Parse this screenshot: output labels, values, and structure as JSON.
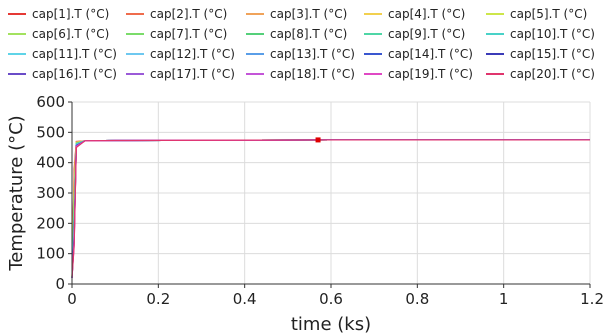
{
  "colors": {
    "series": [
      "#e53935",
      "#ef6c4c",
      "#f0a35a",
      "#f2d04f",
      "#cde64a",
      "#a3e25f",
      "#7bdc6a",
      "#55d07a",
      "#4fd6a6",
      "#49d2c8",
      "#5fd4e8",
      "#6ec8f0",
      "#5a9ee8",
      "#3a57d0",
      "#3b3bb8",
      "#6a4cc8",
      "#9b5ad8",
      "#c455d8",
      "#e048c4",
      "#e0356d"
    ],
    "grid": "#dcdcdc",
    "axis": "#333333"
  },
  "chart_data": {
    "type": "line",
    "xlabel": "time (ks)",
    "ylabel": "Temperature (°C)",
    "xlim": [
      0,
      1.2
    ],
    "ylim": [
      0,
      600
    ],
    "x_ticks": [
      "0",
      "0.2",
      "0.4",
      "0.6",
      "0.8",
      "1",
      "1.2"
    ],
    "y_ticks": [
      "0",
      "100",
      "200",
      "300",
      "400",
      "500",
      "600"
    ],
    "legend_position": "top",
    "grid": true,
    "marker": {
      "x": 0.57,
      "y": 475
    },
    "series": [
      {
        "name": "cap[1].T (°C)",
        "x": [
          0,
          0.005,
          0.01,
          0.03,
          0.1,
          0.3,
          0.6,
          1.2
        ],
        "y": [
          20,
          380,
          470,
          472,
          473,
          474,
          475,
          475
        ]
      },
      {
        "name": "cap[2].T (°C)",
        "x": [
          0,
          0.005,
          0.01,
          0.03,
          0.1,
          0.3,
          0.6,
          1.2
        ],
        "y": [
          20,
          360,
          469,
          472,
          473,
          474,
          475,
          475
        ]
      },
      {
        "name": "cap[3].T (°C)",
        "x": [
          0,
          0.005,
          0.01,
          0.03,
          0.1,
          0.3,
          0.6,
          1.2
        ],
        "y": [
          20,
          340,
          468,
          472,
          473,
          474,
          475,
          475
        ]
      },
      {
        "name": "cap[4].T (°C)",
        "x": [
          0,
          0.005,
          0.01,
          0.03,
          0.1,
          0.3,
          0.6,
          1.2
        ],
        "y": [
          20,
          320,
          467,
          472,
          473,
          474,
          475,
          475
        ]
      },
      {
        "name": "cap[5].T (°C)",
        "x": [
          0,
          0.005,
          0.01,
          0.03,
          0.1,
          0.3,
          0.6,
          1.2
        ],
        "y": [
          20,
          300,
          466,
          472,
          473,
          474,
          475,
          475
        ]
      },
      {
        "name": "cap[6].T (°C)",
        "x": [
          0,
          0.005,
          0.01,
          0.03,
          0.1,
          0.3,
          0.6,
          1.2
        ],
        "y": [
          20,
          280,
          465,
          472,
          473,
          474,
          475,
          475
        ]
      },
      {
        "name": "cap[7].T (°C)",
        "x": [
          0,
          0.005,
          0.01,
          0.03,
          0.1,
          0.3,
          0.6,
          1.2
        ],
        "y": [
          20,
          260,
          464,
          472,
          473,
          474,
          475,
          475
        ]
      },
      {
        "name": "cap[8].T (°C)",
        "x": [
          0,
          0.005,
          0.01,
          0.03,
          0.1,
          0.3,
          0.6,
          1.2
        ],
        "y": [
          20,
          240,
          463,
          472,
          473,
          474,
          475,
          475
        ]
      },
      {
        "name": "cap[9].T (°C)",
        "x": [
          0,
          0.005,
          0.01,
          0.03,
          0.1,
          0.3,
          0.6,
          1.2
        ],
        "y": [
          20,
          220,
          462,
          472,
          473,
          474,
          475,
          475
        ]
      },
      {
        "name": "cap[10].T (°C)",
        "x": [
          0,
          0.005,
          0.01,
          0.03,
          0.1,
          0.3,
          0.6,
          1.2
        ],
        "y": [
          20,
          200,
          461,
          472,
          473,
          474,
          475,
          475
        ]
      },
      {
        "name": "cap[11].T (°C)",
        "x": [
          0,
          0.005,
          0.01,
          0.03,
          0.1,
          0.3,
          0.6,
          1.2
        ],
        "y": [
          20,
          190,
          460,
          472,
          473,
          474,
          475,
          475
        ]
      },
      {
        "name": "cap[12].T (°C)",
        "x": [
          0,
          0.005,
          0.01,
          0.03,
          0.1,
          0.3,
          0.6,
          1.2
        ],
        "y": [
          20,
          180,
          459,
          472,
          473,
          474,
          475,
          475
        ]
      },
      {
        "name": "cap[13].T (°C)",
        "x": [
          0,
          0.005,
          0.01,
          0.03,
          0.1,
          0.3,
          0.6,
          1.2
        ],
        "y": [
          20,
          170,
          458,
          472,
          473,
          474,
          475,
          475
        ]
      },
      {
        "name": "cap[14].T (°C)",
        "x": [
          0,
          0.005,
          0.01,
          0.03,
          0.1,
          0.3,
          0.6,
          1.2
        ],
        "y": [
          20,
          160,
          457,
          472,
          473,
          474,
          475,
          475
        ]
      },
      {
        "name": "cap[15].T (°C)",
        "x": [
          0,
          0.005,
          0.01,
          0.03,
          0.1,
          0.3,
          0.6,
          1.2
        ],
        "y": [
          20,
          150,
          456,
          472,
          473,
          474,
          475,
          475
        ]
      },
      {
        "name": "cap[16].T (°C)",
        "x": [
          0,
          0.005,
          0.01,
          0.03,
          0.1,
          0.3,
          0.6,
          1.2
        ],
        "y": [
          20,
          145,
          455,
          472,
          473,
          474,
          475,
          475
        ]
      },
      {
        "name": "cap[17].T (°C)",
        "x": [
          0,
          0.005,
          0.01,
          0.03,
          0.1,
          0.3,
          0.6,
          1.2
        ],
        "y": [
          20,
          140,
          454,
          472,
          473,
          474,
          475,
          475
        ]
      },
      {
        "name": "cap[18].T (°C)",
        "x": [
          0,
          0.005,
          0.01,
          0.03,
          0.1,
          0.3,
          0.6,
          1.2
        ],
        "y": [
          20,
          135,
          453,
          472,
          473,
          474,
          475,
          475
        ]
      },
      {
        "name": "cap[19].T (°C)",
        "x": [
          0,
          0.005,
          0.01,
          0.03,
          0.1,
          0.3,
          0.6,
          1.2
        ],
        "y": [
          20,
          130,
          452,
          472,
          473,
          474,
          475,
          475
        ]
      },
      {
        "name": "cap[20].T (°C)",
        "x": [
          0,
          0.005,
          0.01,
          0.03,
          0.1,
          0.3,
          0.6,
          1.2
        ],
        "y": [
          20,
          125,
          450,
          472,
          473,
          474,
          475,
          475
        ]
      }
    ]
  }
}
